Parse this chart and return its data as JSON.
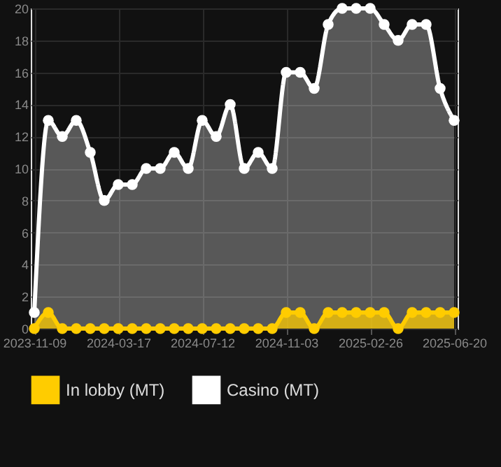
{
  "chart_data": {
    "type": "area",
    "categories": [
      "2023-11-09",
      null,
      null,
      null,
      null,
      null,
      "2024-03-17",
      null,
      null,
      null,
      null,
      null,
      "2024-07-12",
      null,
      null,
      null,
      null,
      null,
      "2024-11-03",
      null,
      null,
      null,
      null,
      null,
      "2025-02-26",
      null,
      null,
      null,
      null,
      null,
      "2025-06-20"
    ],
    "series": [
      {
        "name": "In lobby (MT)",
        "color": "#ffcc00",
        "values": [
          0,
          1,
          0,
          0,
          0,
          0,
          0,
          0,
          0,
          0,
          0,
          0,
          0,
          0,
          0,
          0,
          0,
          0,
          1,
          1,
          0,
          1,
          1,
          1,
          1,
          1,
          0,
          1,
          1,
          1,
          1
        ]
      },
      {
        "name": "Casino (MT)",
        "color": "#ffffff",
        "values": [
          1,
          13,
          12,
          13,
          11,
          8,
          9,
          9,
          10,
          10,
          11,
          10,
          13,
          12,
          14,
          10,
          11,
          10,
          16,
          16,
          15,
          19,
          20,
          20,
          20,
          19,
          18,
          19,
          19,
          15,
          13
        ]
      }
    ],
    "ylim": [
      0,
      20
    ],
    "yticks": [
      0,
      2,
      4,
      6,
      8,
      10,
      12,
      14,
      16,
      18,
      20
    ],
    "grid": true,
    "legend": "bottom",
    "marker": "circle",
    "line_style": "solid"
  }
}
